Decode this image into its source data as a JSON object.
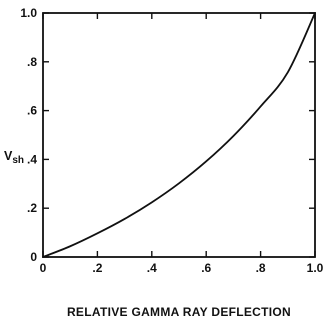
{
  "chart_data": {
    "type": "line",
    "xlabel": "RELATIVE GAMMA RAY DEFLECTION",
    "ylabel": "V",
    "ylabel_sub": "sh",
    "xlim": [
      0,
      1.0
    ],
    "ylim": [
      0,
      1.0
    ],
    "grid": false,
    "x_ticks": [
      0,
      0.2,
      0.4,
      0.6,
      0.8,
      1.0
    ],
    "x_tick_labels": [
      "0",
      ".2",
      ".4",
      ".6",
      ".8",
      "1.0"
    ],
    "y_ticks": [
      0,
      0.2,
      0.4,
      0.6,
      0.8,
      1.0
    ],
    "y_tick_labels": [
      "0",
      ".2",
      ".4",
      ".6",
      ".8",
      "1.0"
    ],
    "series": [
      {
        "x": [
          0,
          0.1,
          0.2,
          0.3,
          0.4,
          0.5,
          0.6,
          0.7,
          0.8,
          0.9,
          1.0
        ],
        "y": [
          0,
          0.044,
          0.097,
          0.156,
          0.224,
          0.302,
          0.392,
          0.496,
          0.617,
          0.757,
          1.0
        ],
        "color": "#111111"
      }
    ]
  }
}
